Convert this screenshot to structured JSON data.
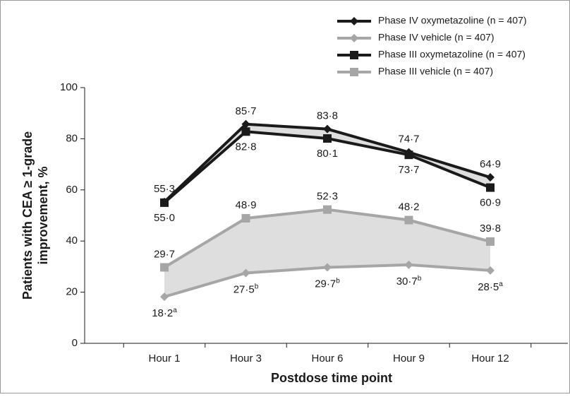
{
  "chart_data": {
    "type": "line",
    "xlabel": "Postdose time point",
    "ylabel": [
      "Patients with CEA ≥ 1-grade",
      "improvement, %"
    ],
    "categories": [
      "Hour 1",
      "Hour 3",
      "Hour 6",
      "Hour 9",
      "Hour 12"
    ],
    "ylim": [
      0,
      100
    ],
    "yticks": [
      0,
      20,
      40,
      60,
      80,
      100
    ],
    "series": [
      {
        "name": "Phase IV oxymetazoline (n = 407)",
        "color": "#1a1a1a",
        "marker": "diamond",
        "values": [
          55.3,
          85.7,
          83.8,
          74.7,
          64.9
        ],
        "value_labels": [
          "55·3",
          "85·7",
          "83·8",
          "74·7",
          "64·9"
        ]
      },
      {
        "name": "Phase IV vehicle (n = 407)",
        "color": "#a6a6a6",
        "marker": "diamond",
        "values": [
          18.2,
          27.5,
          29.7,
          30.7,
          28.5
        ],
        "value_labels": [
          "18·2",
          "27·5",
          "29·7",
          "30·7",
          "28·5"
        ],
        "value_notes": [
          "a",
          "b",
          "b",
          "b",
          "a"
        ]
      },
      {
        "name": "Phase III oxymetazoline (n = 407)",
        "color": "#1a1a1a",
        "marker": "square",
        "values": [
          55.0,
          82.8,
          80.1,
          73.7,
          60.9
        ],
        "value_labels": [
          "55·0",
          "82·8",
          "80·1",
          "73·7",
          "60·9"
        ]
      },
      {
        "name": "Phase III vehicle (n = 407)",
        "color": "#a6a6a6",
        "marker": "square",
        "values": [
          29.7,
          48.9,
          52.3,
          48.2,
          39.8
        ],
        "value_labels": [
          "29·7",
          "48·9",
          "52·3",
          "48·2",
          "39·8"
        ]
      }
    ]
  }
}
